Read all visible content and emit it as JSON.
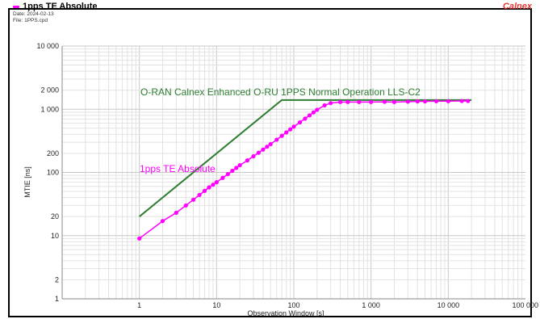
{
  "header": {
    "title": "1pps TE Absolute",
    "date": "Date: 2024-02-13",
    "file": "File: 1PPS.cpd",
    "brand": "Calnex"
  },
  "chart_data": {
    "type": "line",
    "xlabel": "Observation Window [s]",
    "ylabel": "MTIE [ns]",
    "xscale": "log",
    "yscale": "log",
    "xlim": [
      0.1,
      100000
    ],
    "ylim": [
      1,
      10000
    ],
    "x_tick_labels": [
      "1",
      "10",
      "100",
      "1 000",
      "10 000",
      "100 000"
    ],
    "y_tick_labels": [
      "1",
      "2",
      "10",
      "20",
      "100",
      "200",
      "1 000",
      "2 000",
      "10 000"
    ],
    "grid": true,
    "colors": {
      "mask": "#2e7d32",
      "series": "#ff00ff"
    },
    "series": [
      {
        "name": "O-RAN Calnex Enhanced O-RU 1PPS Normal Operation LLS-C2",
        "x": [
          1,
          70,
          20000
        ],
        "y": [
          20,
          1400,
          1400
        ]
      },
      {
        "name": "1pps TE Absolute",
        "x": [
          1,
          2,
          3,
          4,
          5,
          6,
          7,
          8,
          9,
          10,
          12,
          14,
          16,
          18,
          20,
          25,
          30,
          35,
          40,
          45,
          50,
          60,
          70,
          80,
          90,
          100,
          120,
          140,
          160,
          180,
          200,
          250,
          300,
          400,
          500,
          700,
          1000,
          1500,
          2000,
          3000,
          4000,
          5000,
          7000,
          10000,
          15000,
          18000
        ],
        "y": [
          9,
          17,
          23,
          30,
          37,
          44,
          51,
          58,
          64,
          70,
          82,
          94,
          106,
          118,
          130,
          155,
          180,
          205,
          230,
          255,
          280,
          330,
          380,
          430,
          480,
          530,
          620,
          710,
          800,
          890,
          980,
          1150,
          1250,
          1300,
          1300,
          1300,
          1300,
          1310,
          1300,
          1320,
          1330,
          1330,
          1340,
          1340,
          1350,
          1350
        ]
      }
    ]
  }
}
